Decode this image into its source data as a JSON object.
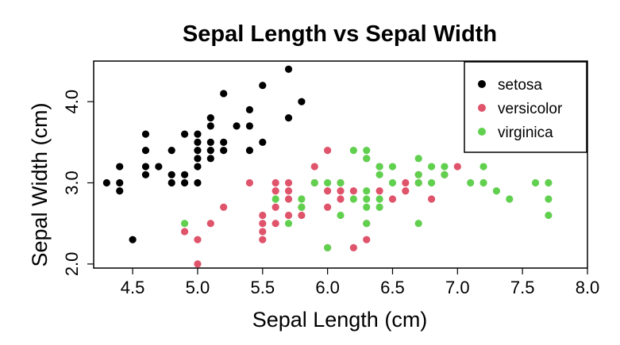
{
  "chart_data": {
    "type": "scatter",
    "title": "Sepal Length vs Sepal Width",
    "xlabel": "Sepal Length (cm)",
    "ylabel": "Sepal Width (cm)",
    "xlim": [
      4.2,
      8.0
    ],
    "ylim": [
      1.95,
      4.5
    ],
    "x_ticks": [
      "4.5",
      "5.0",
      "5.5",
      "6.0",
      "6.5",
      "7.0",
      "7.5",
      "8.0"
    ],
    "y_ticks": [
      "2.0",
      "3.0",
      "4.0"
    ],
    "grid": false,
    "legend_position": "top-right",
    "series": [
      {
        "name": "setosa",
        "color": "#000000",
        "points": [
          [
            4.3,
            3.0
          ],
          [
            4.4,
            2.9
          ],
          [
            4.4,
            3.0
          ],
          [
            4.4,
            3.2
          ],
          [
            4.5,
            2.3
          ],
          [
            4.6,
            3.1
          ],
          [
            4.6,
            3.2
          ],
          [
            4.6,
            3.4
          ],
          [
            4.6,
            3.6
          ],
          [
            4.7,
            3.2
          ],
          [
            4.8,
            3.0
          ],
          [
            4.8,
            3.1
          ],
          [
            4.8,
            3.4
          ],
          [
            4.9,
            3.0
          ],
          [
            4.9,
            3.1
          ],
          [
            4.9,
            3.6
          ],
          [
            5.0,
            3.0
          ],
          [
            5.0,
            3.2
          ],
          [
            5.0,
            3.3
          ],
          [
            5.0,
            3.4
          ],
          [
            5.0,
            3.5
          ],
          [
            5.0,
            3.6
          ],
          [
            5.1,
            3.3
          ],
          [
            5.1,
            3.4
          ],
          [
            5.1,
            3.5
          ],
          [
            5.1,
            3.7
          ],
          [
            5.1,
            3.8
          ],
          [
            5.2,
            3.4
          ],
          [
            5.2,
            3.5
          ],
          [
            5.2,
            4.1
          ],
          [
            5.3,
            3.7
          ],
          [
            5.4,
            3.4
          ],
          [
            5.4,
            3.7
          ],
          [
            5.4,
            3.9
          ],
          [
            5.5,
            3.5
          ],
          [
            5.5,
            4.2
          ],
          [
            5.7,
            3.8
          ],
          [
            5.7,
            4.4
          ],
          [
            5.8,
            4.0
          ]
        ]
      },
      {
        "name": "versicolor",
        "color": "#DF536B",
        "points": [
          [
            4.9,
            2.4
          ],
          [
            5.0,
            2.0
          ],
          [
            5.0,
            2.3
          ],
          [
            5.1,
            2.5
          ],
          [
            5.2,
            2.7
          ],
          [
            5.4,
            3.0
          ],
          [
            5.5,
            2.3
          ],
          [
            5.5,
            2.4
          ],
          [
            5.5,
            2.5
          ],
          [
            5.5,
            2.6
          ],
          [
            5.6,
            2.5
          ],
          [
            5.6,
            2.7
          ],
          [
            5.6,
            2.9
          ],
          [
            5.6,
            3.0
          ],
          [
            5.7,
            2.6
          ],
          [
            5.7,
            2.8
          ],
          [
            5.7,
            2.9
          ],
          [
            5.7,
            3.0
          ],
          [
            5.8,
            2.6
          ],
          [
            5.8,
            2.7
          ],
          [
            5.9,
            3.0
          ],
          [
            5.9,
            3.2
          ],
          [
            6.0,
            2.2
          ],
          [
            6.0,
            2.7
          ],
          [
            6.0,
            2.9
          ],
          [
            6.0,
            3.4
          ],
          [
            6.1,
            2.8
          ],
          [
            6.1,
            2.9
          ],
          [
            6.1,
            3.0
          ],
          [
            6.2,
            2.2
          ],
          [
            6.2,
            2.9
          ],
          [
            6.3,
            2.3
          ],
          [
            6.3,
            2.5
          ],
          [
            6.3,
            3.3
          ],
          [
            6.4,
            2.9
          ],
          [
            6.4,
            3.2
          ],
          [
            6.5,
            2.8
          ],
          [
            6.6,
            2.9
          ],
          [
            6.6,
            3.0
          ],
          [
            6.7,
            3.0
          ],
          [
            6.7,
            3.1
          ],
          [
            6.8,
            2.8
          ],
          [
            6.9,
            3.1
          ],
          [
            7.0,
            3.2
          ]
        ]
      },
      {
        "name": "virginica",
        "color": "#61D04F",
        "points": [
          [
            4.9,
            2.5
          ],
          [
            5.6,
            2.8
          ],
          [
            5.7,
            2.5
          ],
          [
            5.8,
            2.7
          ],
          [
            5.8,
            2.8
          ],
          [
            5.9,
            3.0
          ],
          [
            6.0,
            2.2
          ],
          [
            6.0,
            3.0
          ],
          [
            6.1,
            2.6
          ],
          [
            6.1,
            3.0
          ],
          [
            6.2,
            2.8
          ],
          [
            6.2,
            3.4
          ],
          [
            6.3,
            2.5
          ],
          [
            6.3,
            2.7
          ],
          [
            6.3,
            2.8
          ],
          [
            6.3,
            2.9
          ],
          [
            6.3,
            3.3
          ],
          [
            6.3,
            3.4
          ],
          [
            6.4,
            2.7
          ],
          [
            6.4,
            2.8
          ],
          [
            6.4,
            3.1
          ],
          [
            6.4,
            3.2
          ],
          [
            6.5,
            3.0
          ],
          [
            6.5,
            3.2
          ],
          [
            6.7,
            2.5
          ],
          [
            6.7,
            3.0
          ],
          [
            6.7,
            3.1
          ],
          [
            6.7,
            3.3
          ],
          [
            6.8,
            3.0
          ],
          [
            6.8,
            3.2
          ],
          [
            6.9,
            3.1
          ],
          [
            6.9,
            3.2
          ],
          [
            7.1,
            3.0
          ],
          [
            7.2,
            3.0
          ],
          [
            7.2,
            3.2
          ],
          [
            7.3,
            2.9
          ],
          [
            7.4,
            2.8
          ],
          [
            7.6,
            3.0
          ],
          [
            7.7,
            2.6
          ],
          [
            7.7,
            2.8
          ],
          [
            7.7,
            3.0
          ]
        ]
      }
    ]
  }
}
